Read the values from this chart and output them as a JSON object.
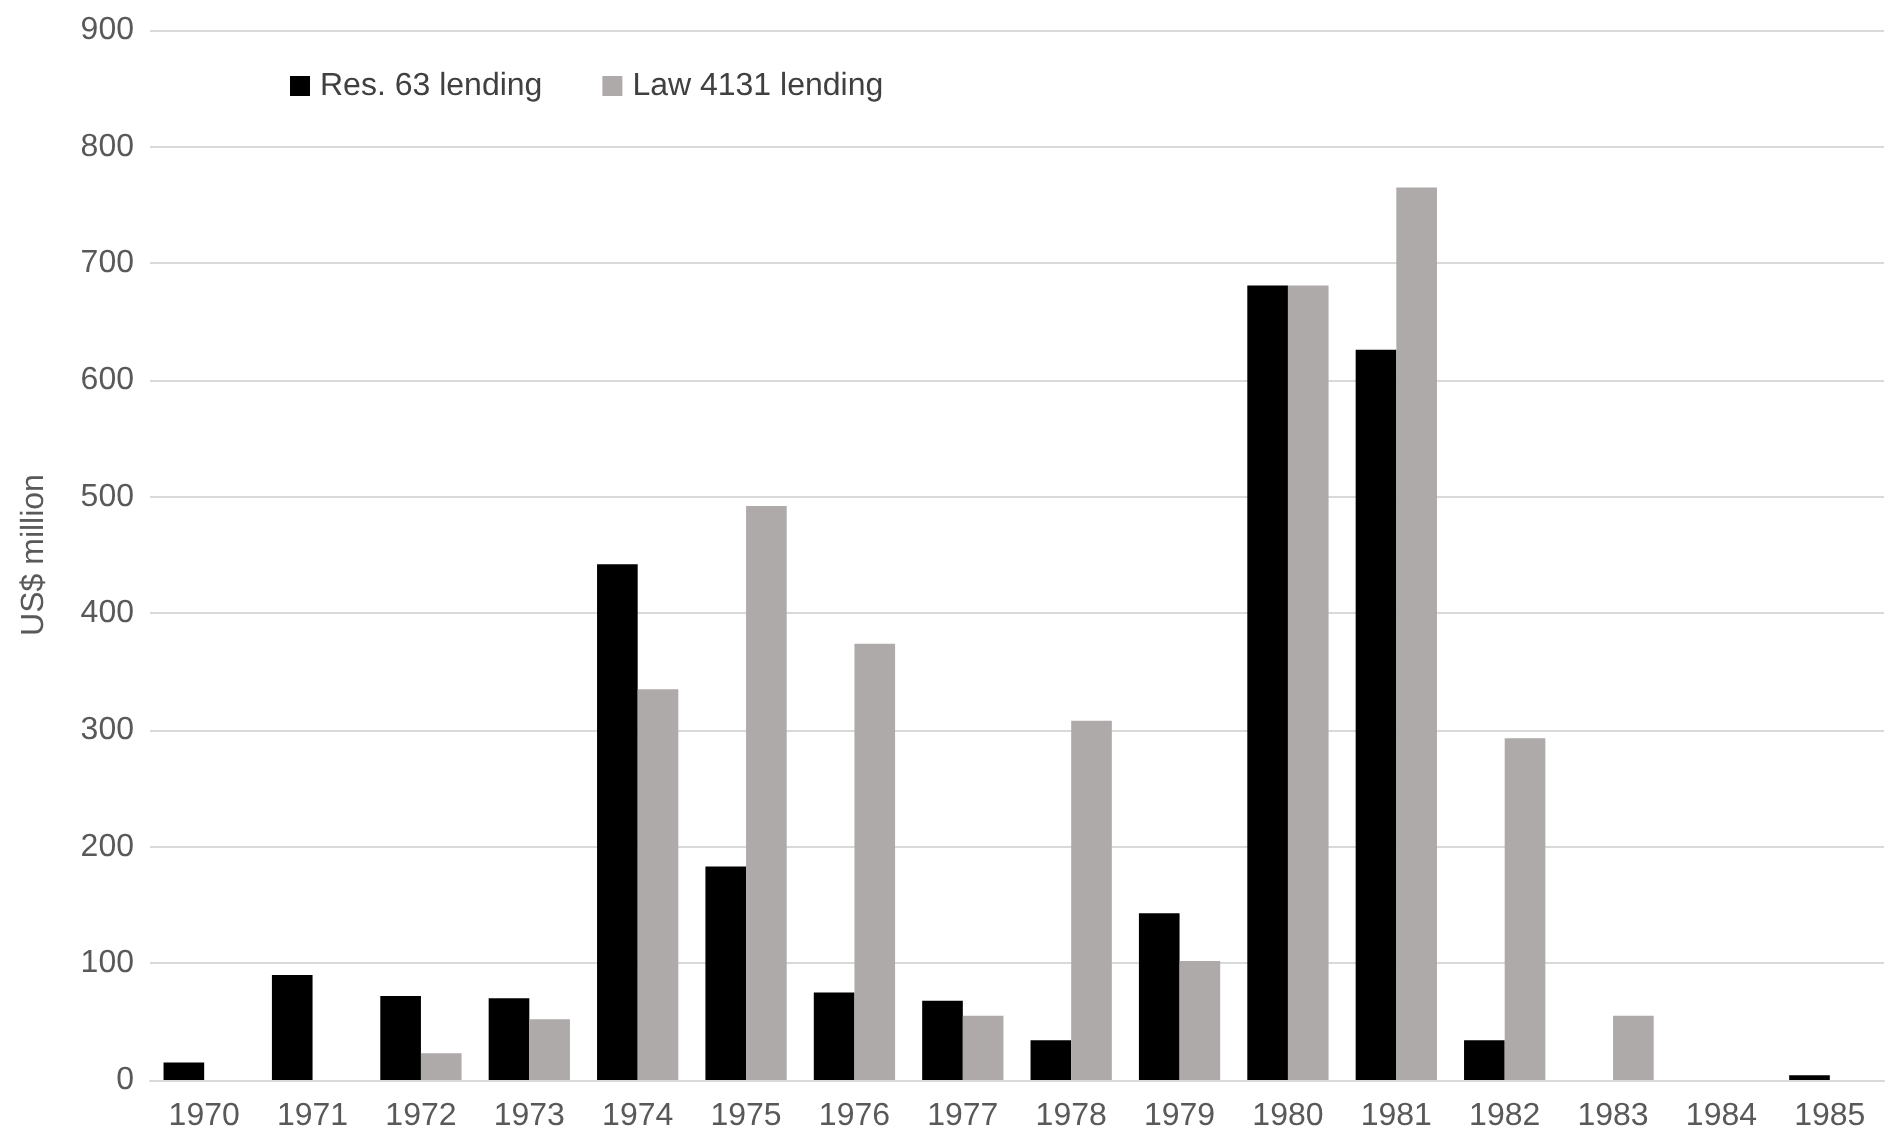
{
  "chart_data": {
    "type": "bar",
    "ylabel": "US$ million",
    "categories": [
      "1970",
      "1971",
      "1972",
      "1973",
      "1974",
      "1975",
      "1976",
      "1977",
      "1978",
      "1979",
      "1980",
      "1981",
      "1982",
      "1983",
      "1984",
      "1985"
    ],
    "series": [
      {
        "name": "Res. 63 lending",
        "color": "#000000",
        "values": [
          15,
          90,
          72,
          70,
          442,
          183,
          75,
          68,
          34,
          143,
          681,
          626,
          34,
          0,
          0,
          4
        ]
      },
      {
        "name": "Law 4131 lending",
        "color": "#aeaaaa",
        "values": [
          0,
          0,
          23,
          52,
          335,
          492,
          374,
          55,
          308,
          102,
          681,
          765,
          293,
          55,
          0,
          0
        ]
      }
    ],
    "ylim": [
      0,
      900
    ],
    "yticks": [
      0,
      100,
      200,
      300,
      400,
      500,
      600,
      700,
      800,
      900
    ],
    "grid": "y",
    "legend": "top left"
  }
}
